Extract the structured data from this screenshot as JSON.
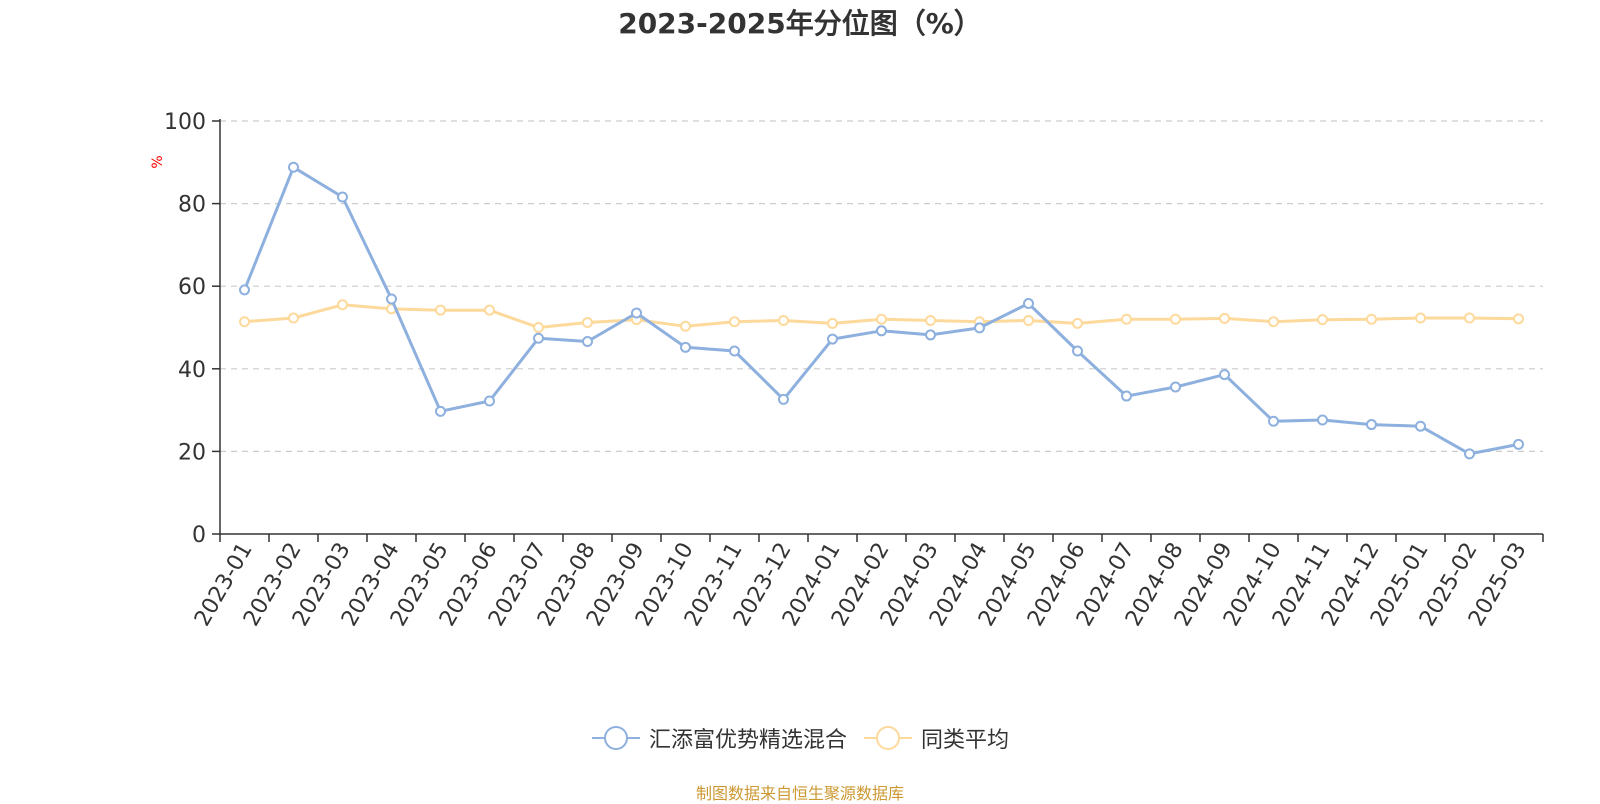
{
  "footer": "制图数据来自恒生聚源数据库",
  "colors": {
    "series1": "#8eb0de",
    "series2": "#fdd99b",
    "axis": "#333333",
    "unit": "#ff0000",
    "grid": "#cccccc",
    "footer": "#cc9933"
  },
  "chart_data": {
    "type": "line",
    "title": "2023-2025年分位图（%）",
    "ylabel": "%",
    "xlabel": "",
    "ylim": [
      0,
      100
    ],
    "yticks": [
      "0",
      "20",
      "40",
      "60",
      "80",
      "100"
    ],
    "grid": true,
    "legend_position": "bottom",
    "x": [
      "2023-01",
      "2023-02",
      "2023-03",
      "2023-04",
      "2023-05",
      "2023-06",
      "2023-07",
      "2023-08",
      "2023-09",
      "2023-10",
      "2023-11",
      "2023-12",
      "2024-01",
      "2024-02",
      "2024-03",
      "2024-04",
      "2024-05",
      "2024-06",
      "2024-07",
      "2024-08",
      "2024-09",
      "2024-10",
      "2024-11",
      "2024-12",
      "2025-01",
      "2025-02",
      "2025-03"
    ],
    "series": [
      {
        "name": "汇添富优势精选混合",
        "color": "#8eb0de",
        "values": [
          59.1,
          88.8,
          81.6,
          56.9,
          29.7,
          32.2,
          47.4,
          46.6,
          53.5,
          45.2,
          44.3,
          32.6,
          47.2,
          49.2,
          48.2,
          49.9,
          55.8,
          44.3,
          33.4,
          35.6,
          38.6,
          27.3,
          27.6,
          26.5,
          26.1,
          19.4,
          21.7
        ]
      },
      {
        "name": "同类平均",
        "color": "#fdd99b",
        "values": [
          51.4,
          52.3,
          55.5,
          54.5,
          54.2,
          54.2,
          50.0,
          51.2,
          51.9,
          50.3,
          51.4,
          51.7,
          51.0,
          52.0,
          51.7,
          51.4,
          51.7,
          51.0,
          52.0,
          52.0,
          52.2,
          51.4,
          51.9,
          52.0,
          52.3,
          52.3,
          52.1
        ]
      }
    ]
  }
}
